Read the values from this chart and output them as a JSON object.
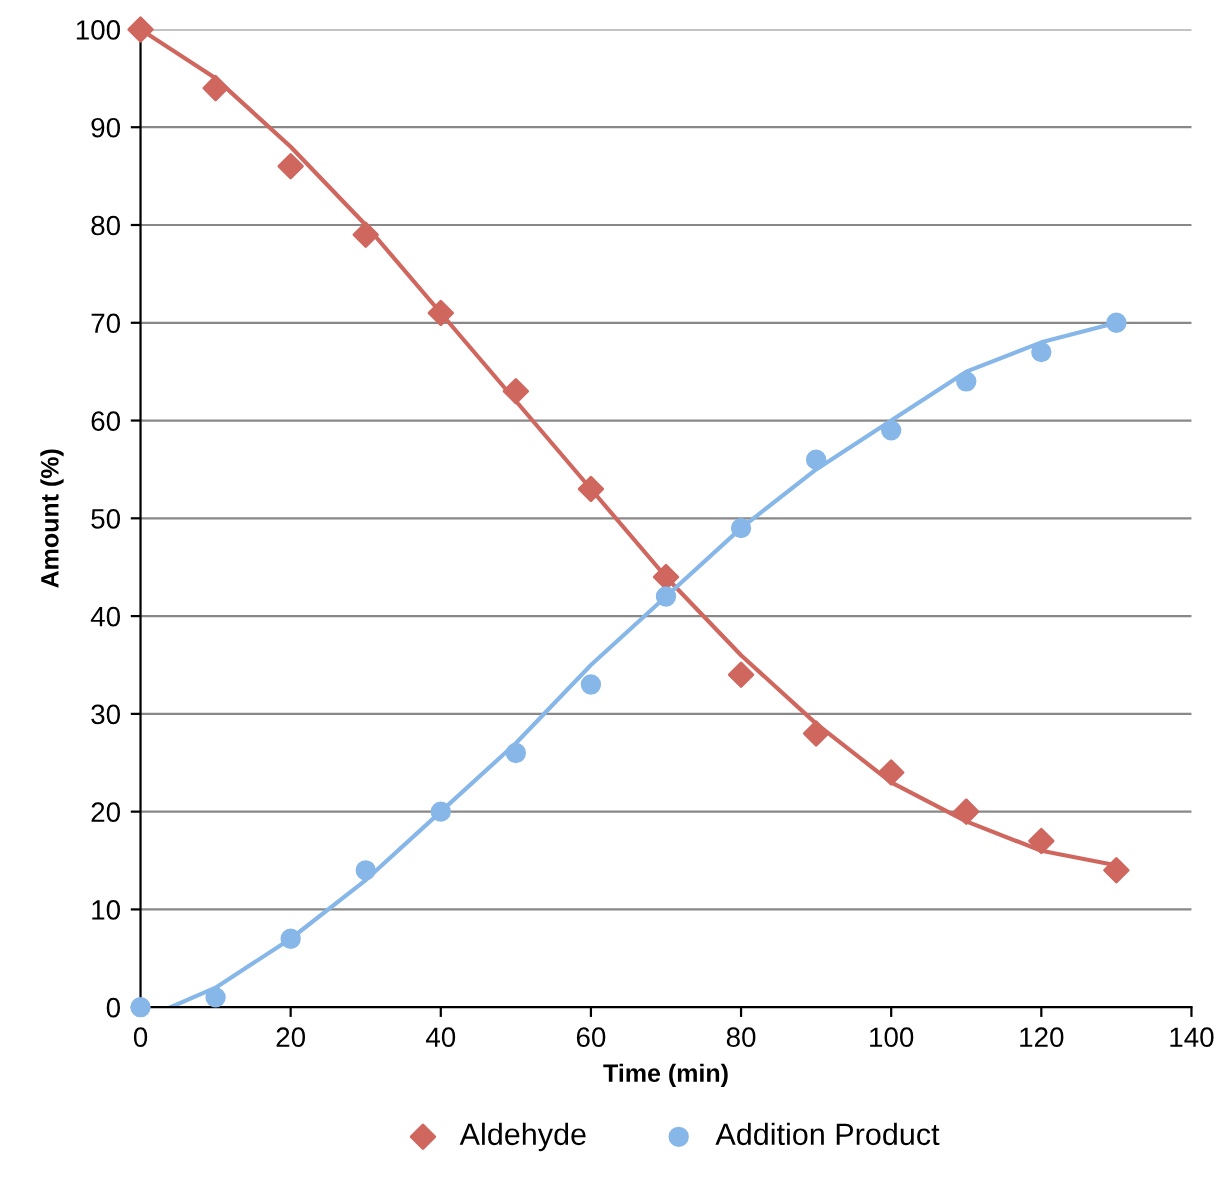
{
  "chart_data": {
    "type": "scatter",
    "xlabel": "Time (min)",
    "ylabel": "Amount (%)",
    "xlim": [
      0,
      140
    ],
    "ylim": [
      0,
      100
    ],
    "xticks": [
      0,
      20,
      40,
      60,
      80,
      100,
      120,
      140
    ],
    "yticks": [
      0,
      10,
      20,
      30,
      40,
      50,
      60,
      70,
      80,
      90,
      100
    ],
    "grid": "y",
    "legend": "bottom",
    "series": [
      {
        "type": "line",
        "marker": "none",
        "color": "#d0675f",
        "x": [
          0,
          10,
          20,
          30,
          40,
          50,
          60,
          70,
          80,
          90,
          100,
          110,
          120,
          130
        ],
        "values": [
          100,
          95,
          88,
          80,
          71,
          62,
          53,
          44,
          36,
          29,
          23,
          19,
          16,
          14.5
        ]
      },
      {
        "type": "line",
        "marker": "none",
        "color": "#86b7e8",
        "x": [
          4,
          10,
          20,
          30,
          40,
          50,
          60,
          70,
          80,
          90,
          100,
          110,
          120,
          130
        ],
        "values": [
          0,
          2,
          7,
          13,
          20,
          27,
          35,
          42,
          49,
          55,
          60,
          65,
          68,
          70
        ]
      },
      {
        "name": "Aldehyde",
        "marker": "diamond",
        "color": "#d0675f",
        "x": [
          0,
          10,
          20,
          30,
          40,
          50,
          60,
          70,
          80,
          90,
          100,
          110,
          120,
          130
        ],
        "values": [
          100,
          94,
          86,
          79,
          71,
          63,
          53,
          44,
          34,
          28,
          24,
          20,
          17,
          14
        ]
      },
      {
        "name": "Addition Product",
        "marker": "circle",
        "color": "#86b7e8",
        "x": [
          0,
          10,
          20,
          30,
          40,
          50,
          60,
          70,
          80,
          90,
          100,
          110,
          120,
          130
        ],
        "values": [
          0,
          1,
          7,
          14,
          20,
          26,
          33,
          42,
          49,
          56,
          59,
          64,
          67,
          70
        ]
      }
    ]
  }
}
